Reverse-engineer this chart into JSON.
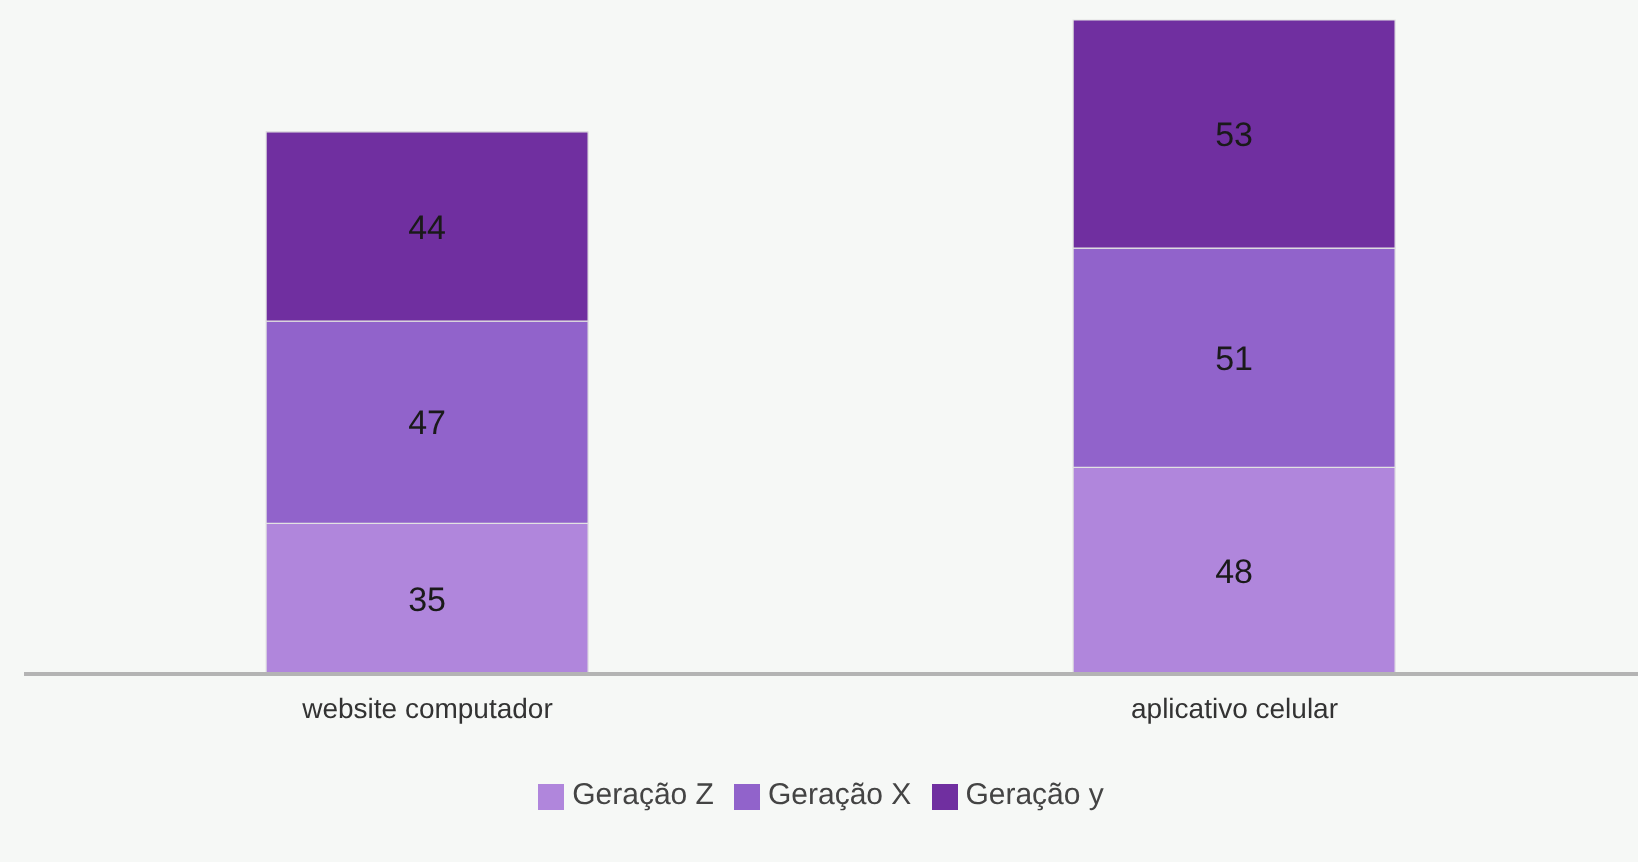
{
  "chart_data": {
    "type": "bar",
    "categories": [
      "website computador",
      "aplicativo celular"
    ],
    "stacked": true,
    "series": [
      {
        "name": "Geração Z",
        "color": "#b086dc",
        "values": [
          35,
          48
        ]
      },
      {
        "name": "Geração X",
        "color": "#9163cb",
        "values": [
          47,
          51
        ]
      },
      {
        "name": "Geração y",
        "color": "#702fa0",
        "values": [
          44,
          53
        ]
      }
    ],
    "data_labels": true,
    "legend": "bottom"
  }
}
